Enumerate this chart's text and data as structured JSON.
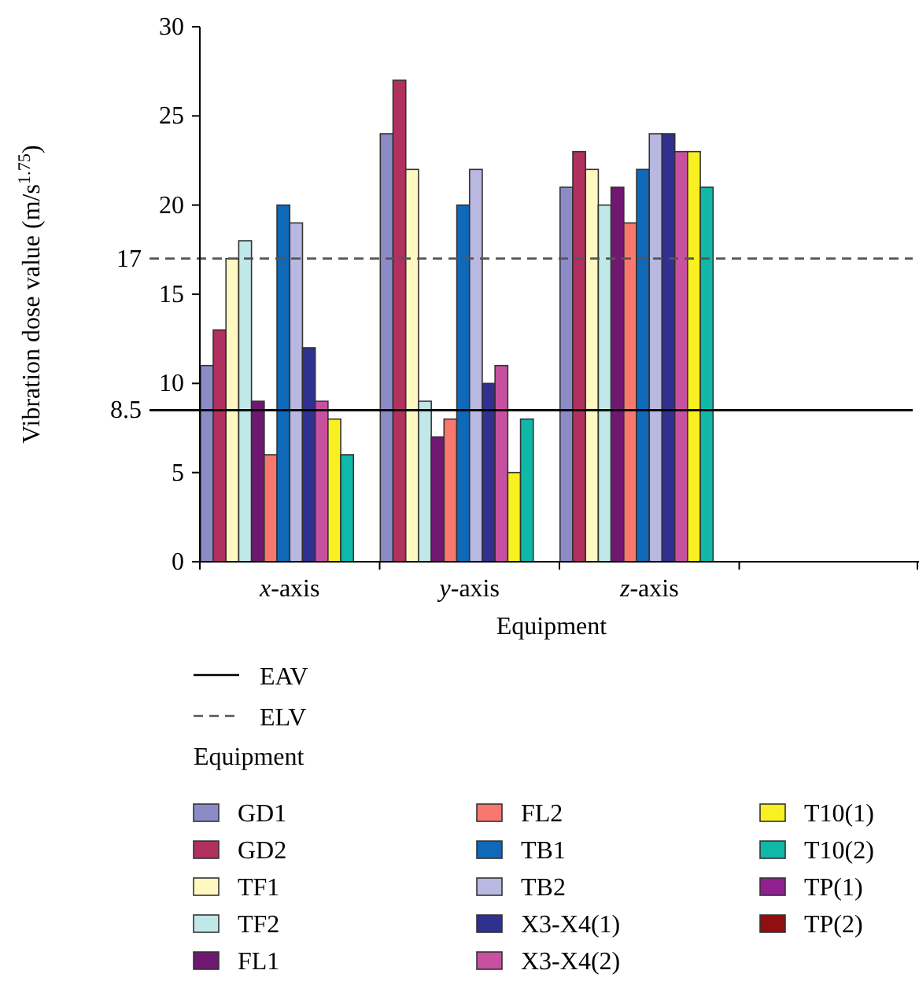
{
  "chart_data": {
    "type": "bar",
    "xlabel": "Equipment",
    "ylabel": "Vibration dose value (m/s$^{1.75}$)",
    "legend_title": "Equipment",
    "legend": "bottom",
    "grid": false,
    "categories": [
      "x-axis",
      "y-axis",
      "z-axis",
      null
    ],
    "ylim": [
      0,
      30
    ],
    "yticks": [
      0,
      5,
      10,
      15,
      20,
      25,
      30
    ],
    "annotations": [
      "8.5",
      "17"
    ],
    "ref_lines": [
      {
        "axis": "y",
        "value": 8.5,
        "label": "EAV",
        "line_style": "solid",
        "color": "#000000"
      },
      {
        "axis": "y",
        "value": 17,
        "label": "ELV",
        "line_style": "dashed",
        "color": "#555555"
      }
    ],
    "series": [
      {
        "name": "GD1",
        "color": "#8b8bc8",
        "values": [
          11,
          24,
          21,
          0
        ]
      },
      {
        "name": "GD2",
        "color": "#b03060",
        "values": [
          13,
          27,
          23,
          0
        ]
      },
      {
        "name": "TF1",
        "color": "#fff8c0",
        "values": [
          17,
          22,
          22,
          0
        ]
      },
      {
        "name": "TF2",
        "color": "#c0e8e8",
        "values": [
          18,
          9,
          20,
          0
        ]
      },
      {
        "name": "FL1",
        "color": "#701870",
        "values": [
          9,
          7,
          21,
          0
        ]
      },
      {
        "name": "FL2",
        "color": "#f87870",
        "values": [
          6,
          8,
          19,
          0
        ]
      },
      {
        "name": "TB1",
        "color": "#1068b8",
        "values": [
          20,
          20,
          22,
          0
        ]
      },
      {
        "name": "TB2",
        "color": "#b8b8e0",
        "values": [
          19,
          22,
          24,
          0
        ]
      },
      {
        "name": "X3-X4(1)",
        "color": "#303090",
        "values": [
          12,
          10,
          24,
          0
        ]
      },
      {
        "name": "X3-X4(2)",
        "color": "#c850a0",
        "values": [
          9,
          11,
          23,
          0
        ]
      },
      {
        "name": "T10(1)",
        "color": "#f8f020",
        "values": [
          8,
          5,
          23,
          0
        ]
      },
      {
        "name": "T10(2)",
        "color": "#10b8a8",
        "values": [
          6,
          8,
          21,
          0
        ]
      },
      {
        "name": "TP(1)",
        "color": "#902090",
        "values": [
          0,
          0,
          0,
          0
        ]
      },
      {
        "name": "TP(2)",
        "color": "#901010",
        "values": [
          0,
          0,
          0,
          0
        ]
      }
    ]
  }
}
